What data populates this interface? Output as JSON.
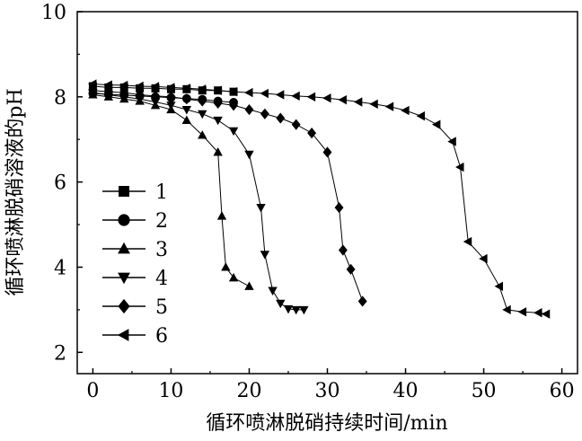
{
  "chart_data": {
    "type": "line",
    "title": "",
    "xlabel": "循环喷淋脱硝持续时间/min",
    "ylabel": "循环喷淋脱硝溶液的pH",
    "xlim": [
      -2,
      62
    ],
    "ylim": [
      1.5,
      10
    ],
    "xticks": [
      "0",
      "10",
      "20",
      "30",
      "40",
      "50",
      "60"
    ],
    "yticks": [
      "2",
      "4",
      "6",
      "8",
      "10"
    ],
    "legend_position": "left",
    "series": [
      {
        "name": "1",
        "marker": "square",
        "x": [
          0,
          2,
          4,
          6,
          8,
          10,
          12,
          14,
          16,
          18
        ],
        "y": [
          8.25,
          8.22,
          8.22,
          8.2,
          8.2,
          8.18,
          8.18,
          8.15,
          8.15,
          8.12
        ]
      },
      {
        "name": "2",
        "marker": "circle",
        "x": [
          0,
          2,
          4,
          6,
          8,
          10,
          12,
          14,
          16,
          18
        ],
        "y": [
          8.08,
          8.06,
          8.04,
          8.02,
          8.0,
          7.98,
          7.96,
          7.94,
          7.9,
          7.87
        ]
      },
      {
        "name": "3",
        "marker": "triangle-up",
        "x": [
          0,
          2,
          4,
          6,
          8,
          10,
          12,
          14,
          16,
          16.5,
          17,
          18,
          20
        ],
        "y": [
          8.05,
          8.0,
          7.95,
          7.9,
          7.8,
          7.7,
          7.45,
          7.1,
          6.7,
          5.2,
          4.0,
          3.75,
          3.55
        ]
      },
      {
        "name": "4",
        "marker": "triangle-down",
        "x": [
          0,
          2,
          4,
          6,
          8,
          10,
          12,
          14,
          16,
          18,
          20,
          21.5,
          22,
          23,
          24,
          25,
          26,
          27
        ],
        "y": [
          8.1,
          8.05,
          8.0,
          7.95,
          7.88,
          7.8,
          7.7,
          7.6,
          7.45,
          7.2,
          6.65,
          5.4,
          4.3,
          3.45,
          3.15,
          3.02,
          3.0,
          3.0
        ]
      },
      {
        "name": "5",
        "marker": "diamond",
        "x": [
          0,
          2,
          4,
          6,
          8,
          10,
          12,
          14,
          16,
          18,
          20,
          22,
          24,
          26,
          28,
          30,
          31.5,
          32,
          33,
          34.5
        ],
        "y": [
          8.15,
          8.12,
          8.1,
          8.05,
          8.02,
          8.0,
          7.95,
          7.9,
          7.85,
          7.8,
          7.7,
          7.6,
          7.5,
          7.35,
          7.15,
          6.7,
          5.4,
          4.4,
          3.95,
          3.2
        ]
      },
      {
        "name": "6",
        "marker": "triangle-left",
        "x": [
          0,
          2,
          4,
          6,
          8,
          10,
          12,
          14,
          16,
          18,
          20,
          22,
          24,
          26,
          28,
          30,
          32,
          34,
          36,
          38,
          40,
          42,
          44,
          46,
          47,
          48,
          50,
          52,
          53,
          55,
          57,
          58
        ],
        "y": [
          8.3,
          8.28,
          8.27,
          8.25,
          8.24,
          8.22,
          8.2,
          8.18,
          8.15,
          8.12,
          8.1,
          8.08,
          8.05,
          8.02,
          8.0,
          7.97,
          7.93,
          7.88,
          7.83,
          7.77,
          7.68,
          7.55,
          7.35,
          6.95,
          6.35,
          4.6,
          4.2,
          3.55,
          3.0,
          2.95,
          2.93,
          2.9
        ]
      }
    ]
  }
}
